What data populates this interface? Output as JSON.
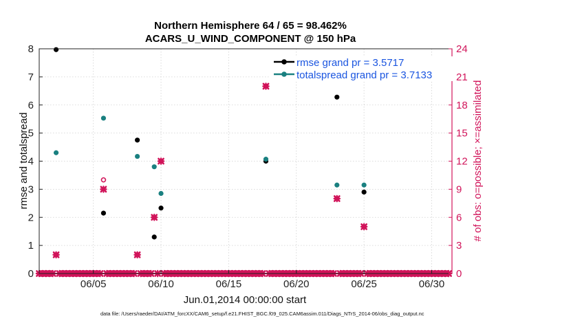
{
  "chart_data": {
    "type": "scatter",
    "title": "Northern Hemisphere 64 / 65 = 98.462%",
    "subtitle": "ACARS_U_WIND_COMPONENT @ 150 hPa",
    "xlabel": "Jun.01,2014 00:00:00 start",
    "ylabel": "rmse and totalspread",
    "y2label": "# of obs: o=possible; ×=assimilated",
    "footer": "data file: /Users/raeder/DAI/ATM_forcXX/CAM6_setup/f.e21.FHIST_BGC.f09_025.CAM6assim.011/Diags_NTrS_2014-06/obs_diag_output.nc",
    "xlim": [
      1,
      31.5
    ],
    "ylim": [
      0,
      8
    ],
    "y2lim": [
      0,
      24
    ],
    "x_ticks": [
      5,
      10,
      15,
      20,
      25,
      30
    ],
    "x_tick_labels": [
      "06/05",
      "06/10",
      "06/15",
      "06/20",
      "06/25",
      "06/30"
    ],
    "y_ticks": [
      0,
      1,
      2,
      3,
      4,
      5,
      6,
      7,
      8
    ],
    "y2_ticks": [
      0,
      3,
      6,
      9,
      12,
      15,
      18,
      21,
      24
    ],
    "grid": true,
    "legend_position": "top-right",
    "series": [
      {
        "name": "rmse",
        "legend": "rmse grand pr = 3.5717",
        "color": "#000000",
        "points": [
          [
            2.25,
            7.97
          ],
          [
            5.75,
            2.15
          ],
          [
            8.25,
            4.75
          ],
          [
            9.5,
            1.3
          ],
          [
            10,
            2.33
          ],
          [
            17.75,
            4.0
          ],
          [
            23,
            6.28
          ],
          [
            25,
            2.9
          ]
        ]
      },
      {
        "name": "totalspread",
        "legend": "totalspread grand pr = 3.7133",
        "color": "#1a8080",
        "points": [
          [
            2.25,
            4.3
          ],
          [
            5.75,
            5.53
          ],
          [
            8.25,
            4.17
          ],
          [
            9.5,
            3.8
          ],
          [
            10,
            2.85
          ],
          [
            17.75,
            4.07
          ],
          [
            23,
            3.15
          ],
          [
            25,
            3.15
          ]
        ]
      }
    ],
    "obs_possible": {
      "color": "#d1145a",
      "points": [
        [
          2.25,
          2
        ],
        [
          5.75,
          10
        ],
        [
          8.25,
          2
        ],
        [
          9.5,
          6
        ],
        [
          10,
          12
        ],
        [
          17.75,
          20
        ],
        [
          23,
          8
        ],
        [
          25,
          5
        ]
      ]
    },
    "obs_assimilated": {
      "color": "#d1145a",
      "points": [
        [
          2.25,
          2
        ],
        [
          5.75,
          9
        ],
        [
          8.25,
          2
        ],
        [
          9.5,
          6
        ],
        [
          10,
          12
        ],
        [
          17.75,
          20
        ],
        [
          23,
          8
        ],
        [
          25,
          5
        ]
      ],
      "zero_from": 1.0,
      "zero_to": 31.25,
      "zero_step": 0.25
    }
  }
}
